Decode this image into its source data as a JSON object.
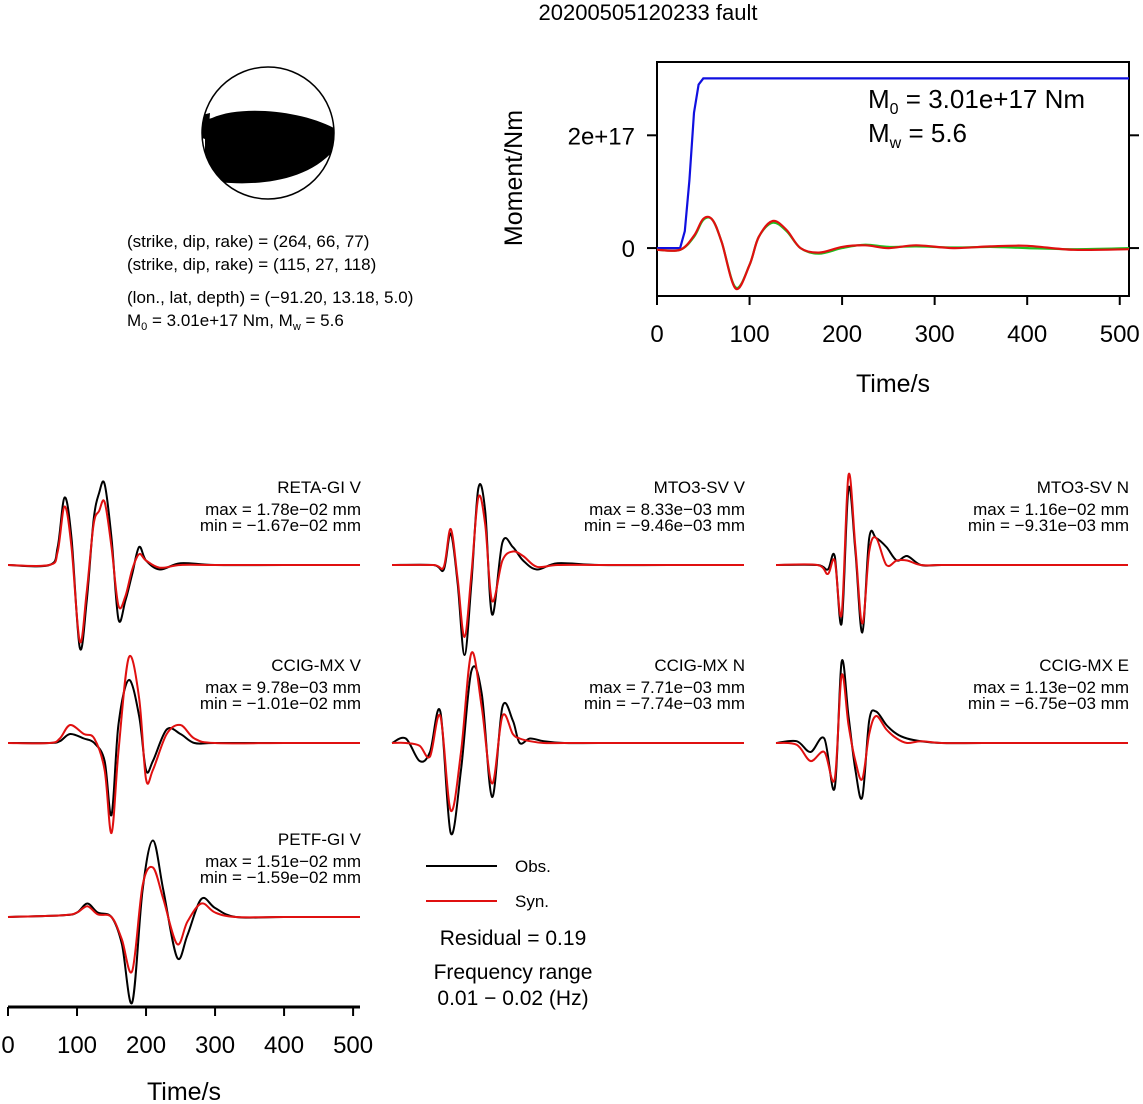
{
  "title": "20200505120233 fault",
  "colors": {
    "obs": "#000000",
    "syn": "#e01010",
    "moment": "#1010e0",
    "green": "#20c020"
  },
  "beachball": {
    "nodal1": "(strike, dip, rake) = (264, 66, 77)",
    "nodal2": "(strike, dip, rake) = (115, 27, 118)",
    "location": "(lon., lat, depth) = (−91.20, 13.18, 5.0)",
    "magnitude_text": "M0 = 3.01e+17 Nm, Mw = 5.6",
    "m0_prefix": "M",
    "m0_sub": "0",
    "m0_value": " = 3.01e+17 Nm, M",
    "mw_sub": "w",
    "mw_value": " = 5.6"
  },
  "moment_panel": {
    "ylabel": "Moment/Nm",
    "xlabel": "Time/s",
    "m0_line": {
      "prefix": "M",
      "sub": "0",
      "value": " = 3.01e+17 Nm"
    },
    "mw_line": {
      "prefix": "M",
      "sub": "w",
      "value": " = 5.6"
    },
    "ytick_labels": [
      "0",
      "2e+17"
    ],
    "xtick_labels": [
      "0",
      "100",
      "200",
      "300",
      "400",
      "500"
    ]
  },
  "legend": {
    "obs_label": "Obs.",
    "syn_label": "Syn.",
    "residual": "Residual = 0.19",
    "freq_title": "Frequency range",
    "freq_range": "0.01 − 0.02 (Hz)"
  },
  "waveform_axis": {
    "xlabel": "Time/s",
    "xtick_labels": [
      "0",
      "100",
      "200",
      "300",
      "400",
      "500"
    ]
  },
  "chart_data": [
    {
      "type": "line",
      "title": "20200505120233 fault",
      "xlabel": "Time/s",
      "ylabel": "Moment/Nm",
      "xlim": [
        0,
        510
      ],
      "ylim": [
        -8.5e+16,
        3.3e+17
      ],
      "series": [
        {
          "color": "#1010e0",
          "x": [
            0,
            25,
            30,
            35,
            40,
            45,
            50,
            510
          ],
          "y": [
            0,
            0,
            3e+16,
            1.2e+17,
            2.4e+17,
            2.9e+17,
            3.01e+17,
            3.01e+17
          ]
        },
        {
          "color": "#20c020",
          "x": [
            0,
            25,
            40,
            50,
            60,
            70,
            85,
            100,
            110,
            125,
            140,
            155,
            175,
            200,
            225,
            250,
            280,
            320,
            360,
            400,
            450,
            510
          ],
          "y": [
            -3000000000000000.0,
            -3000000000000000.0,
            2e+16,
            5e+16,
            5e+16,
            1e+16,
            -7e+16,
            -3e+16,
            2e+16,
            4.5e+16,
            3e+16,
            0.0,
            -1e+16,
            0.0,
            6000000000000000.0,
            2000000000000000.0,
            3000000000000000.0,
            1000000000000000.0,
            2000000000000000.0,
            0.0,
            -2000000000000000.0,
            0.0
          ]
        },
        {
          "color": "#e01010",
          "x": [
            0,
            25,
            40,
            50,
            60,
            70,
            85,
            100,
            110,
            125,
            140,
            155,
            175,
            200,
            225,
            250,
            280,
            320,
            360,
            400,
            450,
            510
          ],
          "y": [
            -3000000000000000.0,
            -3000000000000000.0,
            2.2e+16,
            5.2e+16,
            5e+16,
            1e+16,
            -7.2e+16,
            -3e+16,
            2e+16,
            4.8e+16,
            3.2e+16,
            0.0,
            -8000000000000000.0,
            2000000000000000.0,
            5000000000000000.0,
            0.0,
            5000000000000000.0,
            0.0,
            3000000000000000.0,
            4000000000000000.0,
            -3000000000000000.0,
            -2000000000000000.0
          ]
        }
      ]
    },
    {
      "type": "line",
      "station": "RETA-GI V",
      "max_label": "max = 1.78e−02 mm",
      "min_label": "min = −1.67e−02 mm",
      "x": [
        0,
        60,
        72,
        82,
        92,
        104,
        114,
        124,
        132,
        140,
        150,
        160,
        170,
        180,
        190,
        200,
        220,
        250,
        300,
        400,
        510
      ],
      "obs": [
        0,
        0,
        0.2,
        0.75,
        0.3,
        -0.92,
        -0.4,
        0.5,
        0.8,
        0.9,
        0.3,
        -0.6,
        -0.4,
        -0.1,
        0.2,
        0.05,
        -0.05,
        0.02,
        0,
        0,
        0
      ],
      "syn": [
        0,
        0,
        0.15,
        0.65,
        0.2,
        -0.85,
        -0.3,
        0.45,
        0.6,
        0.7,
        0.2,
        -0.45,
        -0.35,
        -0.05,
        0.12,
        0.05,
        -0.03,
        0,
        0,
        0,
        0
      ]
    },
    {
      "type": "line",
      "station": "MTO3-SV V",
      "max_label": "max = 8.33e−03 mm",
      "min_label": "min = −9.46e−03 mm",
      "x": [
        0,
        60,
        75,
        85,
        95,
        105,
        115,
        125,
        135,
        145,
        160,
        175,
        190,
        210,
        240,
        300,
        400,
        510
      ],
      "obs": [
        0,
        0,
        -0.05,
        0.35,
        -0.2,
        -1.0,
        -0.2,
        0.85,
        0.6,
        -0.55,
        0.25,
        0.2,
        0.05,
        -0.05,
        0.02,
        0,
        0,
        0
      ],
      "syn": [
        0,
        0,
        -0.02,
        0.4,
        -0.15,
        -0.8,
        -0.1,
        0.75,
        0.45,
        -0.4,
        0.05,
        0.15,
        0.1,
        -0.02,
        0,
        0,
        0,
        0
      ]
    },
    {
      "type": "line",
      "station": "MTO3-SV N",
      "max_label": "max = 1.16e−02 mm",
      "min_label": "min = −9.31e−03 mm",
      "x": [
        0,
        60,
        75,
        85,
        95,
        105,
        115,
        125,
        135,
        145,
        160,
        175,
        190,
        210,
        240,
        300,
        400,
        510
      ],
      "obs": [
        0,
        0,
        -0.05,
        0.1,
        -0.65,
        0.85,
        0.15,
        -0.75,
        0.3,
        0.3,
        0.2,
        0.05,
        0.1,
        0,
        0,
        0,
        0,
        0
      ],
      "syn": [
        0,
        0,
        -0.1,
        0.05,
        -0.55,
        1.0,
        0.2,
        -0.65,
        0.15,
        0.3,
        0.0,
        0.05,
        0.05,
        0,
        0,
        0,
        0,
        0
      ]
    },
    {
      "type": "line",
      "station": "CCIG-MX V",
      "max_label": "max = 9.78e−03 mm",
      "min_label": "min = −1.01e−02 mm",
      "x": [
        0,
        60,
        75,
        90,
        110,
        125,
        140,
        150,
        160,
        175,
        190,
        200,
        210,
        230,
        250,
        270,
        300,
        400,
        510
      ],
      "obs": [
        0,
        0,
        0.02,
        0.1,
        0.05,
        0.0,
        -0.2,
        -0.8,
        0.2,
        0.7,
        0.3,
        -0.3,
        -0.2,
        0.15,
        0.1,
        0,
        0,
        0,
        0
      ],
      "syn": [
        0,
        0,
        0.05,
        0.2,
        0.1,
        0.05,
        -0.3,
        -1.0,
        -0.1,
        0.95,
        0.5,
        -0.4,
        -0.3,
        0.1,
        0.2,
        0.05,
        0,
        0,
        0
      ]
    },
    {
      "type": "line",
      "station": "CCIG-MX N",
      "max_label": "max = 7.71e−03 mm",
      "min_label": "min = −7.74e−03 mm",
      "x": [
        0,
        20,
        40,
        55,
        70,
        85,
        100,
        115,
        130,
        145,
        160,
        175,
        185,
        200,
        220,
        250,
        300,
        400,
        510
      ],
      "obs": [
        0,
        0.05,
        -0.2,
        -0.1,
        0.35,
        -1.0,
        -0.3,
        0.8,
        0.55,
        -0.6,
        0.4,
        0.25,
        0.0,
        0.05,
        0.02,
        0,
        0,
        0,
        0
      ],
      "syn": [
        0,
        0,
        -0.03,
        -0.15,
        0.3,
        -0.75,
        -0.1,
        1.0,
        0.4,
        -0.45,
        0.3,
        0.1,
        0.05,
        0.02,
        0,
        0,
        0,
        0,
        0
      ]
    },
    {
      "type": "line",
      "station": "CCIG-MX E",
      "max_label": "max = 1.13e−02 mm",
      "min_label": "min = −6.75e−03 mm",
      "x": [
        0,
        30,
        50,
        70,
        85,
        95,
        105,
        115,
        125,
        135,
        145,
        160,
        175,
        190,
        210,
        240,
        300,
        400,
        510
      ],
      "obs": [
        0,
        0.02,
        -0.1,
        0.05,
        -0.5,
        0.9,
        0.3,
        -0.3,
        -0.6,
        0.25,
        0.35,
        0.2,
        0.1,
        0.05,
        0.02,
        0,
        0,
        0,
        0
      ],
      "syn": [
        0,
        -0.02,
        -0.2,
        -0.1,
        -0.4,
        0.75,
        0.2,
        -0.2,
        -0.4,
        0.1,
        0.3,
        0.15,
        0.05,
        0.0,
        0.02,
        0,
        0,
        0,
        0
      ]
    },
    {
      "type": "line",
      "station": "PETF-GI V",
      "max_label": "max = 1.51e−02 mm",
      "min_label": "min = −1.59e−02 mm",
      "x": [
        0,
        80,
        100,
        115,
        130,
        150,
        165,
        180,
        195,
        210,
        225,
        245,
        260,
        280,
        300,
        330,
        400,
        510
      ],
      "obs": [
        0,
        0.02,
        0.05,
        0.15,
        0.05,
        0.0,
        -0.3,
        -0.95,
        0.3,
        0.85,
        0.3,
        -0.45,
        -0.2,
        0.2,
        0.1,
        0,
        0,
        0
      ],
      "syn": [
        0,
        0.02,
        0.05,
        0.12,
        0.03,
        0.0,
        -0.25,
        -0.6,
        0.35,
        0.55,
        0.2,
        -0.3,
        -0.05,
        0.15,
        0.05,
        0,
        0,
        0
      ]
    }
  ]
}
